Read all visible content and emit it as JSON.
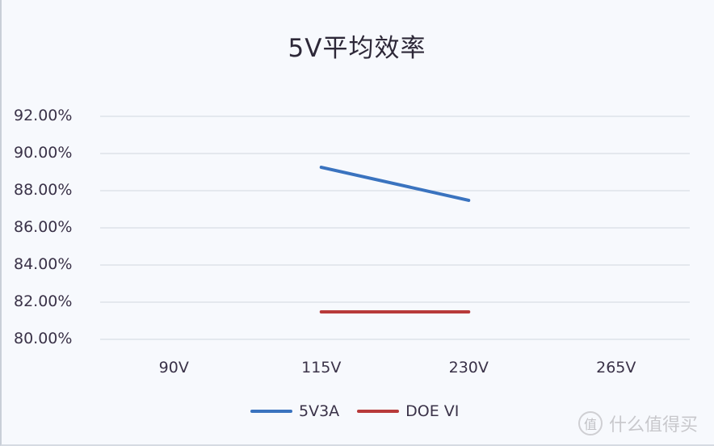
{
  "chart_data": {
    "type": "line",
    "title": "5V平均效率",
    "xlabel": "",
    "ylabel": "",
    "categories": [
      "90V",
      "115V",
      "230V",
      "265V"
    ],
    "series": [
      {
        "name": "5V3A",
        "color": "#3a73bf",
        "values": [
          null,
          89.26,
          87.48,
          null
        ]
      },
      {
        "name": "DOE VI",
        "color": "#b83a3a",
        "values": [
          null,
          81.48,
          81.48,
          null
        ]
      }
    ],
    "ylim": [
      80,
      92
    ],
    "yticks": [
      "92.00%",
      "90.00%",
      "88.00%",
      "86.00%",
      "84.00%",
      "82.00%",
      "80.00%"
    ],
    "grid": true,
    "legend_position": "bottom"
  },
  "watermark": {
    "icon": "值",
    "text": "什么值得买"
  }
}
